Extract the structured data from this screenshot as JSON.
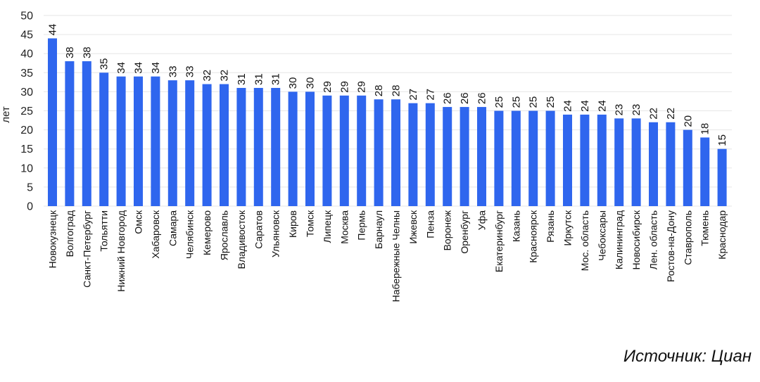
{
  "chart_data": {
    "type": "bar",
    "ylabel": "лет",
    "xlabel": "",
    "ylim": [
      0,
      50
    ],
    "yticks": [
      0,
      5,
      10,
      15,
      20,
      25,
      30,
      35,
      40,
      45,
      50
    ],
    "grid": true,
    "bar_color": "#2f66ee",
    "categories": [
      "Новокузнецк",
      "Волгоград",
      "Санкт-Петербург",
      "Тольятти",
      "Нижний Новгород",
      "Омск",
      "Хабаровск",
      "Самара",
      "Челябинск",
      "Кемерово",
      "Ярославль",
      "Владивосток",
      "Саратов",
      "Ульяновск",
      "Киров",
      "Томск",
      "Липецк",
      "Москва",
      "Пермь",
      "Барнаул",
      "Набережные Челны",
      "Ижевск",
      "Пенза",
      "Воронеж",
      "Оренбург",
      "Уфа",
      "Екатеринбург",
      "Казань",
      "Красноярск",
      "Рязань",
      "Иркутск",
      "Мос. область",
      "Чебоксары",
      "Калининград",
      "Новосибирск",
      "Лен. область",
      "Ростов-на-Дону",
      "Ставрополь",
      "Тюмень",
      "Краснодар"
    ],
    "values": [
      44,
      38,
      38,
      35,
      34,
      34,
      34,
      33,
      33,
      32,
      32,
      31,
      31,
      31,
      30,
      30,
      29,
      29,
      29,
      28,
      28,
      27,
      27,
      26,
      26,
      26,
      25,
      25,
      25,
      25,
      24,
      24,
      24,
      23,
      23,
      22,
      22,
      20,
      18,
      15
    ]
  },
  "source": "Источник: Циан"
}
